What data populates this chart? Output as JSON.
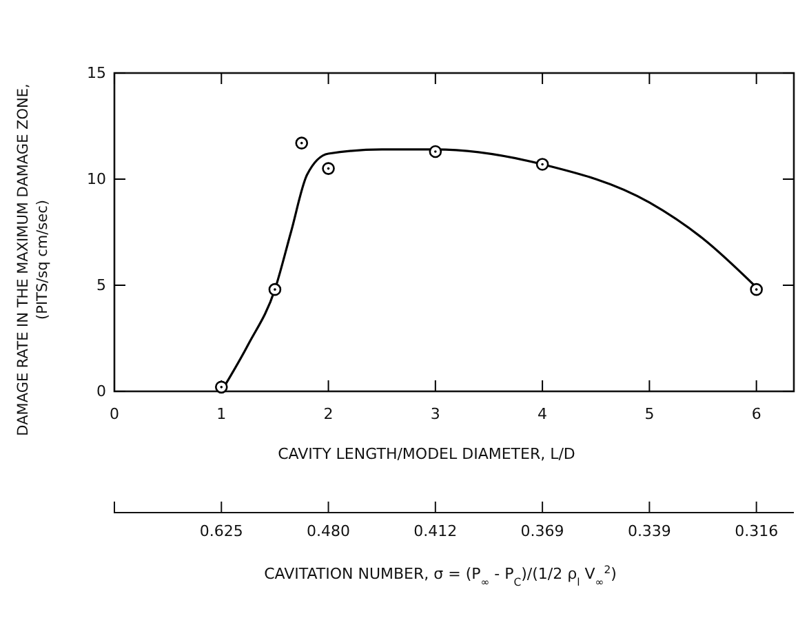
{
  "chart_data": {
    "type": "scatter",
    "ylabel": "DAMAGE RATE IN THE MAXIMUM DAMAGE ZONE, (PITS/sq cm/sec)",
    "xlabel": "CAVITY LENGTH/MODEL DIAMETER, L/D",
    "x2label": "CAVITATION NUMBER, σ = (P$_{∞}$ - P$_{C}$)/(1/2 ρ$_{l}$ V$_{∞}$$^{2}$)",
    "xlim": [
      0,
      6.35
    ],
    "xticks": [
      0,
      1,
      2,
      3,
      4,
      5,
      6
    ],
    "annotations": [
      {
        "text": "0.625",
        "x": 1
      },
      {
        "text": "0.480",
        "x": 2
      },
      {
        "text": "0.412",
        "x": 3
      },
      {
        "text": "0.369",
        "x": 4
      },
      {
        "text": "0.339",
        "x": 5
      },
      {
        "text": "0.316",
        "x": 6
      }
    ],
    "ylim": [
      0,
      15
    ],
    "yticks": [
      0,
      5,
      10,
      15
    ],
    "grid": false,
    "marker": "circle",
    "series": [
      {
        "color": "#000000",
        "x": [
          1,
          1.5,
          1.75,
          2,
          3,
          4,
          6
        ],
        "values": [
          0.2,
          4.8,
          11.7,
          10.5,
          11.3,
          10.7,
          4.8
        ]
      },
      {
        "type": "line",
        "color": "#000000",
        "marker": "none",
        "line_style": "solid",
        "x": [
          1,
          1.25,
          1.5,
          1.65,
          1.8,
          2,
          2.5,
          3,
          4,
          5,
          5.5,
          6
        ],
        "values": [
          0,
          2.2,
          4.8,
          7.5,
          10.2,
          11.2,
          11.4,
          11.4,
          10.7,
          8.9,
          7.2,
          4.9
        ]
      }
    ]
  }
}
